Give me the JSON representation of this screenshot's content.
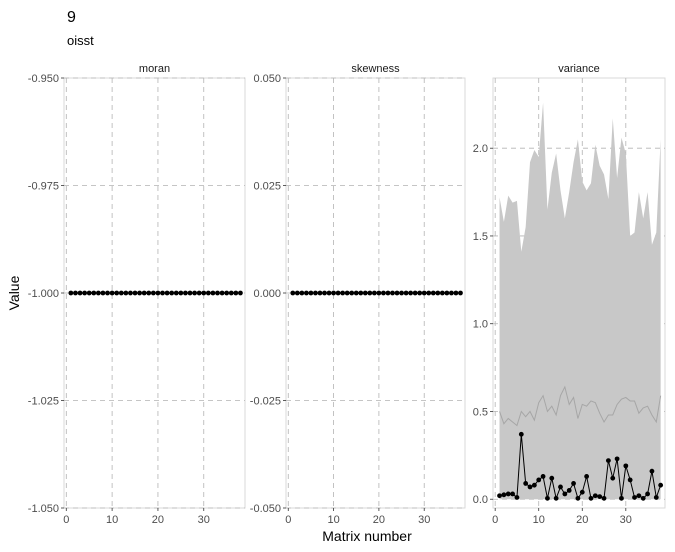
{
  "chart_data": {
    "type": "line",
    "title": "9",
    "subtitle": "oisst",
    "xlabel": "Matrix number",
    "ylabel": "Value",
    "x_ticks": [
      0,
      10,
      20,
      30
    ],
    "xlim": [
      -0.5,
      39
    ],
    "grid": "dashed",
    "panels": [
      {
        "name": "moran",
        "ylim": [
          -1.05,
          -0.95
        ],
        "y_ticks": [
          -1.05,
          -1.025,
          -1.0,
          -0.975,
          -0.95
        ],
        "y_tick_labels": [
          "-1.050",
          "-1.025",
          "-1.000",
          "-0.975",
          "-0.950"
        ],
        "x": [
          1,
          2,
          3,
          4,
          5,
          6,
          7,
          8,
          9,
          10,
          11,
          12,
          13,
          14,
          15,
          16,
          17,
          18,
          19,
          20,
          21,
          22,
          23,
          24,
          25,
          26,
          27,
          28,
          29,
          30,
          31,
          32,
          33,
          34,
          35,
          36,
          37,
          38
        ],
        "values": [
          -1,
          -1,
          -1,
          -1,
          -1,
          -1,
          -1,
          -1,
          -1,
          -1,
          -1,
          -1,
          -1,
          -1,
          -1,
          -1,
          -1,
          -1,
          -1,
          -1,
          -1,
          -1,
          -1,
          -1,
          -1,
          -1,
          -1,
          -1,
          -1,
          -1,
          -1,
          -1,
          -1,
          -1,
          -1,
          -1,
          -1,
          -1
        ]
      },
      {
        "name": "skewness",
        "ylim": [
          -0.05,
          0.05
        ],
        "y_ticks": [
          -0.05,
          -0.025,
          0.0,
          0.025,
          0.05
        ],
        "y_tick_labels": [
          "-0.050",
          "-0.025",
          "0.000",
          "0.025",
          "0.050"
        ],
        "x": [
          1,
          2,
          3,
          4,
          5,
          6,
          7,
          8,
          9,
          10,
          11,
          12,
          13,
          14,
          15,
          16,
          17,
          18,
          19,
          20,
          21,
          22,
          23,
          24,
          25,
          26,
          27,
          28,
          29,
          30,
          31,
          32,
          33,
          34,
          35,
          36,
          37,
          38
        ],
        "values": [
          0,
          0,
          0,
          0,
          0,
          0,
          0,
          0,
          0,
          0,
          0,
          0,
          0,
          0,
          0,
          0,
          0,
          0,
          0,
          0,
          0,
          0,
          0,
          0,
          0,
          0,
          0,
          0,
          0,
          0,
          0,
          0,
          0,
          0,
          0,
          0,
          0,
          0
        ]
      },
      {
        "name": "variance",
        "ylim": [
          -0.05,
          2.4
        ],
        "y_ticks": [
          0.0,
          0.5,
          1.0,
          1.5,
          2.0
        ],
        "y_tick_labels": [
          "0.0",
          "0.5",
          "1.0",
          "1.5",
          "2.0"
        ],
        "x": [
          1,
          2,
          3,
          4,
          5,
          6,
          7,
          8,
          9,
          10,
          11,
          12,
          13,
          14,
          15,
          16,
          17,
          18,
          19,
          20,
          21,
          22,
          23,
          24,
          25,
          26,
          27,
          28,
          29,
          30,
          31,
          32,
          33,
          34,
          35,
          36,
          37,
          38
        ],
        "values": [
          0.02,
          0.025,
          0.03,
          0.03,
          0.01,
          0.37,
          0.09,
          0.07,
          0.08,
          0.11,
          0.13,
          0.005,
          0.12,
          0.005,
          0.07,
          0.03,
          0.05,
          0.09,
          0.005,
          0.04,
          0.13,
          0.005,
          0.02,
          0.015,
          0.005,
          0.22,
          0.12,
          0.23,
          0.005,
          0.19,
          0.11,
          0.01,
          0.02,
          0.005,
          0.03,
          0.16,
          0.01,
          0.08
        ],
        "band_upper": [
          1.72,
          1.58,
          1.73,
          1.69,
          1.7,
          1.41,
          1.55,
          1.92,
          1.99,
          1.95,
          2.26,
          1.65,
          1.86,
          1.97,
          1.76,
          1.6,
          1.75,
          1.92,
          2.05,
          1.81,
          1.76,
          1.8,
          2.02,
          1.9,
          1.85,
          1.71,
          2.17,
          1.83,
          2.06,
          1.97,
          1.5,
          1.52,
          1.75,
          1.6,
          1.75,
          1.45,
          1.52,
          2.05
        ],
        "band_lower": [
          0,
          0,
          0,
          0,
          0,
          0,
          0,
          0,
          0,
          0,
          0,
          0,
          0,
          0,
          0,
          0,
          0,
          0,
          0,
          0,
          0,
          0,
          0,
          0,
          0,
          0,
          0,
          0,
          0,
          0,
          0,
          0,
          0,
          0,
          0,
          0,
          0,
          0
        ],
        "mid_line": [
          0.5,
          0.43,
          0.46,
          0.44,
          0.42,
          0.5,
          0.47,
          0.5,
          0.45,
          0.55,
          0.59,
          0.5,
          0.53,
          0.48,
          0.59,
          0.64,
          0.54,
          0.58,
          0.46,
          0.54,
          0.53,
          0.56,
          0.55,
          0.49,
          0.44,
          0.48,
          0.48,
          0.54,
          0.57,
          0.58,
          0.56,
          0.56,
          0.49,
          0.52,
          0.53,
          0.48,
          0.44,
          0.59
        ]
      }
    ]
  }
}
